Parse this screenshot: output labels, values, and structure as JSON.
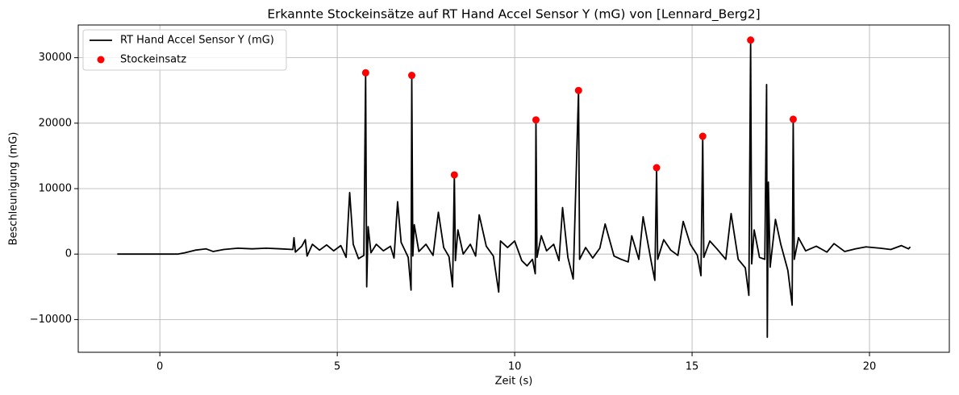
{
  "chart_data": {
    "type": "line",
    "title": "Erkannte Stockeinsätze auf RT Hand Accel Sensor Y (mG) von [Lennard_Berg2]",
    "xlabel": "Zeit (s)",
    "ylabel": "Beschleunigung (mG)",
    "xlim": [
      -2.3,
      22.25
    ],
    "ylim": [
      -15000,
      35000
    ],
    "xticks": [
      0,
      5,
      10,
      15,
      20
    ],
    "yticks": [
      {
        "value": -10000,
        "label": "−10000"
      },
      0,
      10000,
      20000,
      30000
    ],
    "grid": true,
    "legend": "upper left",
    "series": [
      {
        "name": "RT Hand Accel Sensor Y (mG)",
        "color": "#000000",
        "marker": "line",
        "x": [
          -1.2,
          0.5,
          0.7,
          1.0,
          1.3,
          1.5,
          1.8,
          2.2,
          2.6,
          3.0,
          3.4,
          3.75,
          3.78,
          3.82,
          4.0,
          4.1,
          4.15,
          4.3,
          4.5,
          4.7,
          4.9,
          5.1,
          5.25,
          5.35,
          5.45,
          5.6,
          5.75,
          5.8,
          5.83,
          5.87,
          5.95,
          6.1,
          6.3,
          6.5,
          6.6,
          6.7,
          6.8,
          7.0,
          7.08,
          7.1,
          7.13,
          7.17,
          7.3,
          7.5,
          7.7,
          7.85,
          8.0,
          8.15,
          8.25,
          8.3,
          8.33,
          8.4,
          8.55,
          8.75,
          8.9,
          9.0,
          9.2,
          9.4,
          9.55,
          9.6,
          9.8,
          10.0,
          10.2,
          10.35,
          10.5,
          10.58,
          10.6,
          10.63,
          10.75,
          10.9,
          11.1,
          11.25,
          11.35,
          11.5,
          11.65,
          11.8,
          11.83,
          12.0,
          12.2,
          12.4,
          12.55,
          12.8,
          13.0,
          13.2,
          13.3,
          13.5,
          13.62,
          13.85,
          13.95,
          14.0,
          14.03,
          14.2,
          14.4,
          14.6,
          14.75,
          14.95,
          15.15,
          15.25,
          15.3,
          15.33,
          15.5,
          15.7,
          15.95,
          16.1,
          16.3,
          16.5,
          16.6,
          16.65,
          16.68,
          16.75,
          16.9,
          17.05,
          17.1,
          17.12,
          17.15,
          17.2,
          17.35,
          17.5,
          17.7,
          17.82,
          17.85,
          17.88,
          18.0,
          18.2,
          18.5,
          18.8,
          19.0,
          19.3,
          19.6,
          19.9,
          20.3,
          20.6,
          20.9,
          21.1,
          21.15
        ],
        "values": [
          0,
          0,
          200,
          600,
          800,
          400,
          700,
          900,
          800,
          900,
          800,
          700,
          2500,
          300,
          1200,
          2200,
          -300,
          1500,
          600,
          1400,
          500,
          1300,
          -500,
          9400,
          1500,
          -700,
          -200,
          27700,
          -5000,
          4200,
          200,
          1500,
          500,
          1200,
          -600,
          8000,
          1800,
          -500,
          -5500,
          27300,
          -300,
          4500,
          400,
          1500,
          -200,
          6400,
          1000,
          -400,
          -5000,
          12100,
          -1000,
          3700,
          0,
          1500,
          -300,
          6000,
          1200,
          -300,
          -5800,
          2000,
          1000,
          2000,
          -1000,
          -1800,
          -800,
          -3000,
          20500,
          -500,
          2800,
          500,
          1500,
          -1000,
          7100,
          -500,
          -3800,
          25000,
          -800,
          1000,
          -600,
          900,
          4600,
          -300,
          -800,
          -1200,
          2800,
          -800,
          5700,
          -1200,
          -4000,
          13200,
          -800,
          2200,
          600,
          -200,
          5000,
          1500,
          -200,
          -3300,
          18000,
          -500,
          2000,
          800,
          -800,
          6200,
          -800,
          -2100,
          -6300,
          32700,
          -1500,
          3700,
          -500,
          -800,
          25900,
          -12700,
          11000,
          -2000,
          5300,
          1500,
          -2500,
          -7800,
          20600,
          -800,
          2500,
          500,
          1200,
          300,
          1600,
          400,
          800,
          1100,
          900,
          700,
          1300,
          800,
          1100
        ]
      },
      {
        "name": "Stockeinsatz",
        "color": "#ff0000",
        "marker": "point",
        "x": [
          5.8,
          7.1,
          8.3,
          10.6,
          11.8,
          14.0,
          15.3,
          16.65,
          17.85
        ],
        "values": [
          27700,
          27300,
          12100,
          20500,
          25000,
          13200,
          18000,
          32700,
          20600
        ]
      }
    ]
  }
}
